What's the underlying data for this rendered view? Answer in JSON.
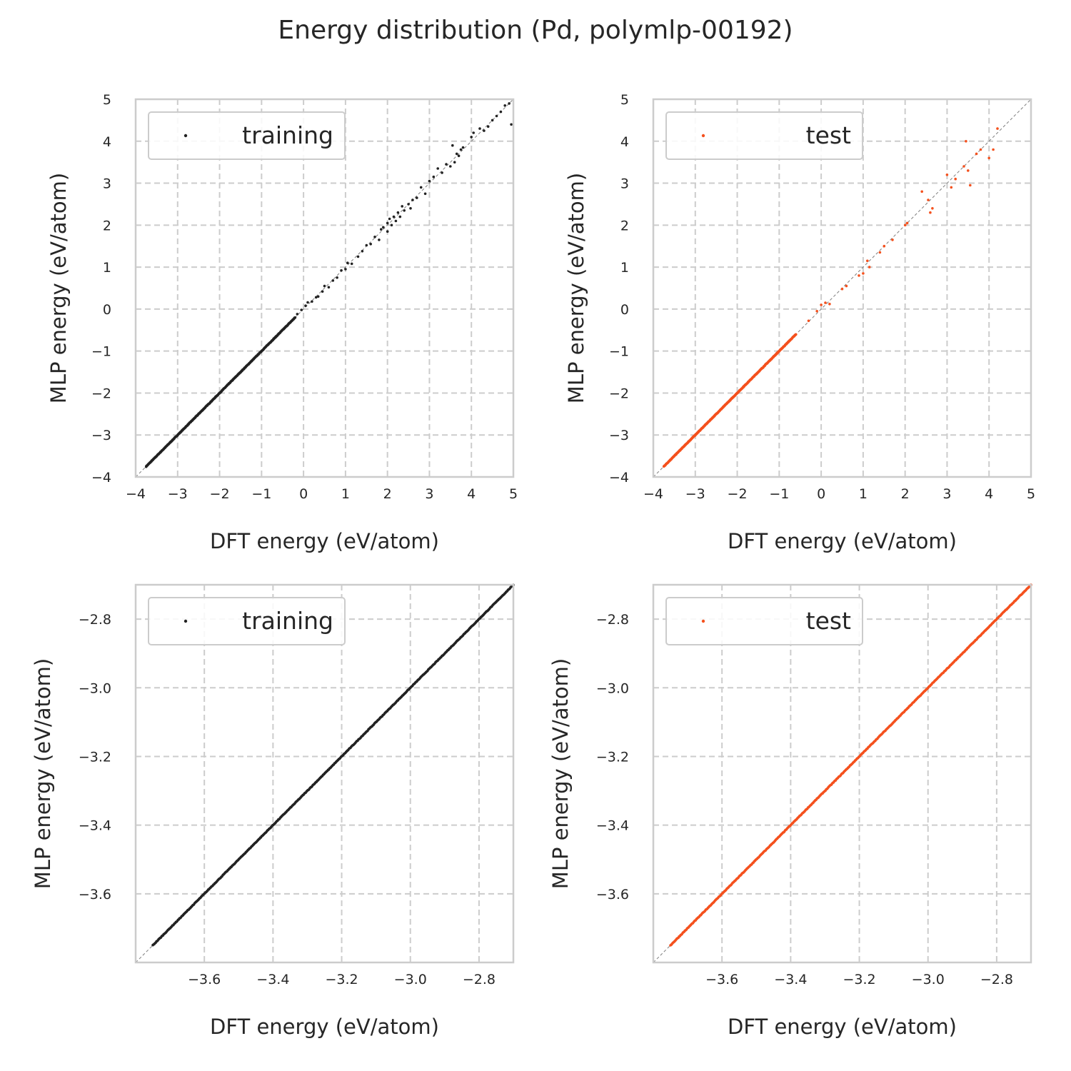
{
  "title": "Energy distribution (Pd, polymlp-00192)",
  "colors": {
    "training": "#222222",
    "test": "#f4511e",
    "grid": "#cccccc",
    "frame": "#cccccc",
    "diagonal": "#7f7f7f"
  },
  "chart_data": [
    {
      "type": "scatter",
      "id": "training-full",
      "xlabel": "DFT energy (eV/atom)",
      "ylabel": "MLP energy (eV/atom)",
      "xlim": [
        -4,
        5
      ],
      "ylim": [
        -4,
        5
      ],
      "xticks": [
        -4,
        -3,
        -2,
        -1,
        0,
        1,
        2,
        3,
        4,
        5
      ],
      "xtick_labels": [
        "−4",
        "−3",
        "−2",
        "−1",
        "0",
        "1",
        "2",
        "3",
        "4",
        "5"
      ],
      "yticks": [
        -4,
        -3,
        -2,
        -1,
        0,
        1,
        2,
        3,
        4,
        5
      ],
      "ytick_labels": [
        "−4",
        "−3",
        "−2",
        "−1",
        "0",
        "1",
        "2",
        "3",
        "4",
        "5"
      ],
      "grid": true,
      "legend_position": "top-left",
      "series": [
        {
          "name": "training",
          "color": "training",
          "dense_range": [
            -3.75,
            -0.2
          ],
          "points": [
            [
              -0.15,
              -0.12
            ],
            [
              -0.05,
              -0.02
            ],
            [
              0.05,
              0.08
            ],
            [
              0.1,
              0.16
            ],
            [
              0.2,
              0.18
            ],
            [
              0.3,
              0.28
            ],
            [
              0.35,
              0.3
            ],
            [
              0.45,
              0.42
            ],
            [
              0.5,
              0.55
            ],
            [
              0.6,
              0.52
            ],
            [
              0.7,
              0.68
            ],
            [
              0.8,
              0.75
            ],
            [
              0.9,
              0.92
            ],
            [
              1.0,
              0.95
            ],
            [
              1.05,
              1.1
            ],
            [
              1.15,
              1.08
            ],
            [
              1.3,
              1.25
            ],
            [
              1.4,
              1.38
            ],
            [
              1.5,
              1.52
            ],
            [
              1.6,
              1.55
            ],
            [
              1.7,
              1.72
            ],
            [
              1.8,
              1.65
            ],
            [
              1.85,
              1.9
            ],
            [
              1.9,
              1.95
            ],
            [
              2.0,
              2.05
            ],
            [
              2.0,
              1.85
            ],
            [
              2.05,
              2.15
            ],
            [
              2.1,
              2.0
            ],
            [
              2.15,
              2.2
            ],
            [
              2.2,
              2.1
            ],
            [
              2.25,
              2.3
            ],
            [
              2.3,
              2.2
            ],
            [
              2.35,
              2.45
            ],
            [
              2.4,
              2.35
            ],
            [
              2.5,
              2.5
            ],
            [
              2.55,
              2.4
            ],
            [
              2.6,
              2.6
            ],
            [
              2.7,
              2.65
            ],
            [
              2.8,
              2.9
            ],
            [
              2.9,
              2.75
            ],
            [
              3.0,
              3.05
            ],
            [
              3.1,
              3.15
            ],
            [
              3.2,
              3.35
            ],
            [
              3.3,
              3.25
            ],
            [
              3.4,
              3.45
            ],
            [
              3.5,
              3.4
            ],
            [
              3.55,
              3.9
            ],
            [
              3.6,
              3.5
            ],
            [
              3.65,
              3.7
            ],
            [
              3.7,
              3.65
            ],
            [
              3.75,
              3.8
            ],
            [
              3.8,
              3.85
            ],
            [
              4.0,
              4.1
            ],
            [
              4.05,
              4.2
            ],
            [
              4.2,
              4.3
            ],
            [
              4.3,
              4.25
            ],
            [
              4.4,
              4.35
            ],
            [
              4.5,
              4.5
            ],
            [
              4.6,
              4.6
            ],
            [
              4.7,
              4.7
            ],
            [
              4.8,
              4.85
            ],
            [
              4.9,
              4.9
            ],
            [
              4.95,
              4.4
            ]
          ]
        }
      ]
    },
    {
      "type": "scatter",
      "id": "test-full",
      "xlabel": "DFT energy (eV/atom)",
      "ylabel": "MLP energy (eV/atom)",
      "xlim": [
        -4,
        5
      ],
      "ylim": [
        -4,
        5
      ],
      "xticks": [
        -4,
        -3,
        -2,
        -1,
        0,
        1,
        2,
        3,
        4,
        5
      ],
      "xtick_labels": [
        "−4",
        "−3",
        "−2",
        "−1",
        "0",
        "1",
        "2",
        "3",
        "4",
        "5"
      ],
      "yticks": [
        -4,
        -3,
        -2,
        -1,
        0,
        1,
        2,
        3,
        4,
        5
      ],
      "ytick_labels": [
        "−4",
        "−3",
        "−2",
        "−1",
        "0",
        "1",
        "2",
        "3",
        "4",
        "5"
      ],
      "grid": true,
      "legend_position": "top-left",
      "series": [
        {
          "name": "test",
          "color": "test",
          "dense_range": [
            -3.75,
            -0.6
          ],
          "points": [
            [
              -0.3,
              -0.28
            ],
            [
              -0.1,
              -0.05
            ],
            [
              0.0,
              0.1
            ],
            [
              0.1,
              0.15
            ],
            [
              0.2,
              0.12
            ],
            [
              0.5,
              0.48
            ],
            [
              0.6,
              0.55
            ],
            [
              0.9,
              0.8
            ],
            [
              1.0,
              0.85
            ],
            [
              1.1,
              1.15
            ],
            [
              1.15,
              1.0
            ],
            [
              1.4,
              1.35
            ],
            [
              1.5,
              1.5
            ],
            [
              1.7,
              1.65
            ],
            [
              2.0,
              2.0
            ],
            [
              2.05,
              2.05
            ],
            [
              2.4,
              2.8
            ],
            [
              2.55,
              2.6
            ],
            [
              2.6,
              2.3
            ],
            [
              2.65,
              2.4
            ],
            [
              3.0,
              3.2
            ],
            [
              3.1,
              2.9
            ],
            [
              3.2,
              3.1
            ],
            [
              3.4,
              3.4
            ],
            [
              3.45,
              4.0
            ],
            [
              3.5,
              3.3
            ],
            [
              3.55,
              2.95
            ],
            [
              3.7,
              3.7
            ],
            [
              3.8,
              3.8
            ],
            [
              4.0,
              3.6
            ],
            [
              4.1,
              3.8
            ],
            [
              4.2,
              4.3
            ]
          ]
        }
      ]
    },
    {
      "type": "scatter",
      "id": "training-zoom",
      "xlabel": "DFT energy (eV/atom)",
      "ylabel": "MLP energy (eV/atom)",
      "xlim": [
        -3.8,
        -2.7
      ],
      "ylim": [
        -3.8,
        -2.7
      ],
      "xticks": [
        -3.6,
        -3.4,
        -3.2,
        -3.0,
        -2.8
      ],
      "xtick_labels": [
        "−3.6",
        "−3.4",
        "−3.2",
        "−3.0",
        "−2.8"
      ],
      "yticks": [
        -3.6,
        -3.4,
        -3.2,
        -3.0,
        -2.8
      ],
      "ytick_labels": [
        "−3.6",
        "−3.4",
        "−3.2",
        "−3.0",
        "−2.8"
      ],
      "grid": true,
      "legend_position": "top-left",
      "series": [
        {
          "name": "training",
          "color": "training",
          "dense_range": [
            -3.75,
            -2.7
          ],
          "points": []
        }
      ]
    },
    {
      "type": "scatter",
      "id": "test-zoom",
      "xlabel": "DFT energy (eV/atom)",
      "ylabel": "MLP energy (eV/atom)",
      "xlim": [
        -3.8,
        -2.7
      ],
      "ylim": [
        -3.8,
        -2.7
      ],
      "xticks": [
        -3.6,
        -3.4,
        -3.2,
        -3.0,
        -2.8
      ],
      "xtick_labels": [
        "−3.6",
        "−3.4",
        "−3.2",
        "−3.0",
        "−2.8"
      ],
      "yticks": [
        -3.6,
        -3.4,
        -3.2,
        -3.0,
        -2.8
      ],
      "ytick_labels": [
        "−3.6",
        "−3.4",
        "−3.2",
        "−3.0",
        "−2.8"
      ],
      "grid": true,
      "legend_position": "top-left",
      "series": [
        {
          "name": "test",
          "color": "test",
          "dense_range": [
            -3.75,
            -2.7
          ],
          "points": []
        }
      ]
    }
  ]
}
